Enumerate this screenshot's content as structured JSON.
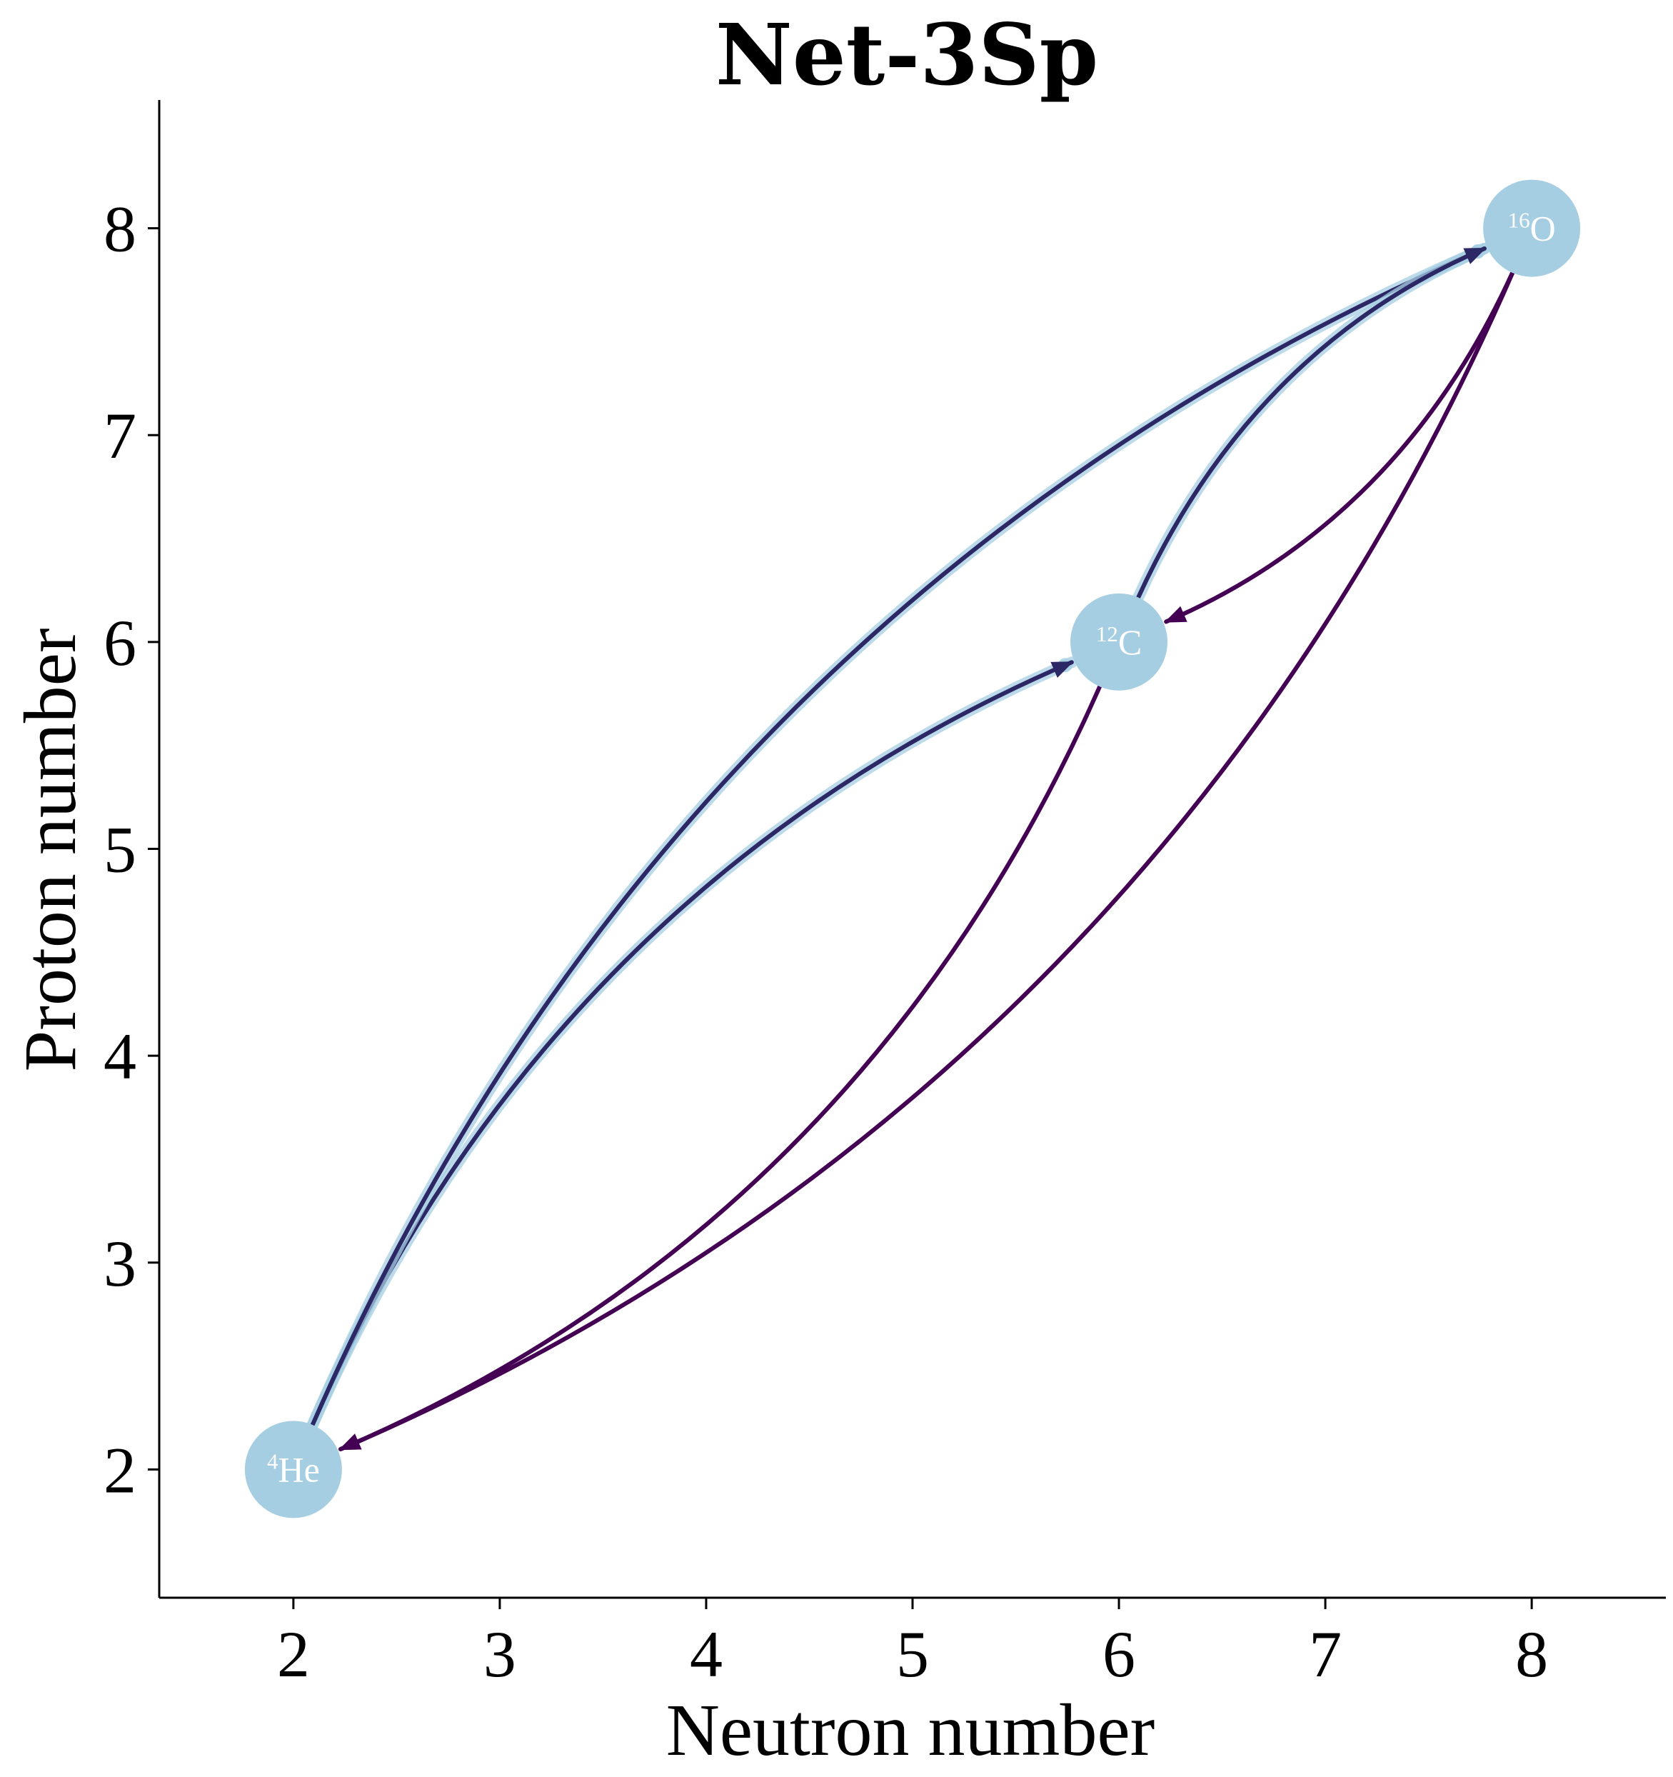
{
  "chart_data": {
    "type": "network",
    "title": "Net-3Sp",
    "xlabel": "Neutron number",
    "ylabel": "Proton number",
    "xlim": [
      1.35,
      8.65
    ],
    "ylim": [
      1.38,
      8.62
    ],
    "xticks": [
      2,
      3,
      4,
      5,
      6,
      7,
      8
    ],
    "yticks": [
      2,
      3,
      4,
      5,
      6,
      7,
      8
    ],
    "grid": false,
    "node_color": "#a6cee3",
    "nodes": [
      {
        "name": "4He",
        "mass": "4",
        "symbol": "He",
        "neutrons": 2,
        "protons": 2
      },
      {
        "name": "12C",
        "mass": "12",
        "symbol": "C",
        "neutrons": 6,
        "protons": 6
      },
      {
        "name": "16O",
        "mass": "16",
        "symbol": "O",
        "neutrons": 8,
        "protons": 8
      }
    ],
    "links": [
      {
        "from": "4He",
        "to": "12C",
        "color": "#2c2866",
        "highlighted": true,
        "curvature": 0.2
      },
      {
        "from": "4He",
        "to": "16O",
        "color": "#2c2866",
        "highlighted": true,
        "curvature": 0.2
      },
      {
        "from": "12C",
        "to": "16O",
        "color": "#2c2866",
        "highlighted": true,
        "curvature": 0.2
      },
      {
        "from": "12C",
        "to": "4He",
        "color": "#440154",
        "highlighted": false,
        "curvature": 0.2
      },
      {
        "from": "16O",
        "to": "4He",
        "color": "#440154",
        "highlighted": false,
        "curvature": 0.2
      },
      {
        "from": "16O",
        "to": "12C",
        "color": "#440154",
        "highlighted": false,
        "curvature": 0.2
      }
    ]
  }
}
